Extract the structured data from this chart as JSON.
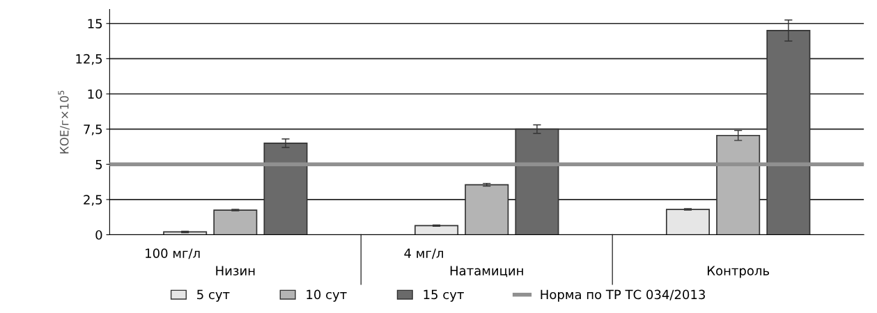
{
  "chart_data": {
    "type": "bar",
    "ylabel": "КОЕ/г×10$^{5}$",
    "categories": [
      "Низин",
      "Натамицин",
      "Контроль"
    ],
    "series": [
      {
        "name": "5 сут",
        "color": "#e6e6e6",
        "values": [
          0.2,
          0.65,
          1.8
        ],
        "errors": [
          0.05,
          0.05,
          0.05
        ]
      },
      {
        "name": "10 сут",
        "color": "#b4b4b4",
        "values": [
          1.75,
          3.55,
          7.05
        ],
        "errors": [
          0.05,
          0.1,
          0.35
        ]
      },
      {
        "name": "15 сут",
        "color": "#6a6a6a",
        "values": [
          6.5,
          7.5,
          14.5
        ],
        "errors": [
          0.3,
          0.3,
          0.75
        ]
      }
    ],
    "ref_lines": [
      {
        "axis": "y",
        "value": 5,
        "label": "Норма по ТР ТС 034/2013",
        "color": "#909090"
      }
    ],
    "annotations": [
      "100 мг/л",
      "4 мг/л"
    ],
    "ylim": [
      0,
      16
    ],
    "yticks": [
      0,
      {
        "value": 2.5,
        "label": "2,5"
      },
      5,
      {
        "value": 7.5,
        "label": "7,5"
      },
      10,
      {
        "value": 12.5,
        "label": "12,5"
      },
      15
    ],
    "grid": "y",
    "legend": "bottom"
  }
}
